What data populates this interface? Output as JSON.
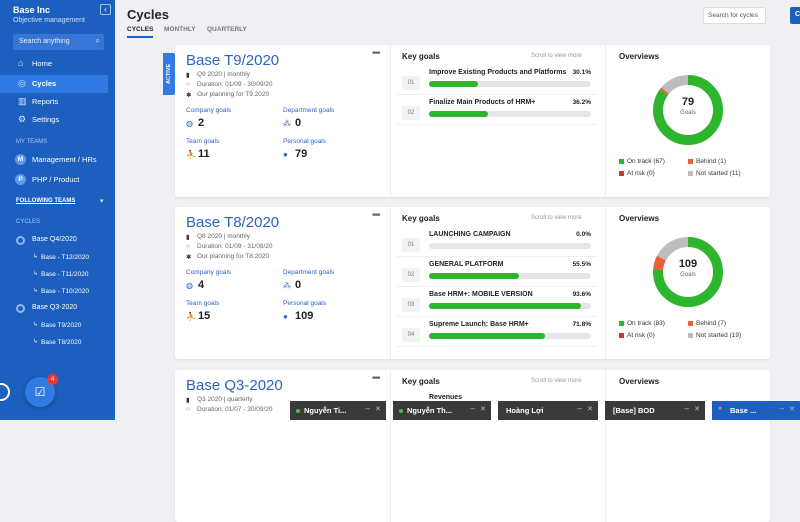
{
  "sidebar": {
    "company": "Base Inc",
    "subtitle": "Objective management",
    "search": "Search anything",
    "nav": [
      "Home",
      "Cycles",
      "Reports",
      "Settings"
    ],
    "my_teams_heading": "MY TEAMS",
    "teams": [
      {
        "initial": "M",
        "name": "Management / HRs"
      },
      {
        "initial": "P",
        "name": "PHP / Product"
      }
    ],
    "following_heading": "FOLLOWING TEAMS",
    "cycles_heading": "CYCLES",
    "cycles": [
      {
        "name": "Base Q4/2020",
        "children": [
          "Base - T12/2020",
          "Base - T11/2020",
          "Base - T10/2020"
        ]
      },
      {
        "name": "Base Q3-2020",
        "children": [
          "Base T9/2020",
          "Base T8/2020"
        ]
      }
    ],
    "badge": 4
  },
  "header": {
    "title": "Cycles",
    "tabs": [
      "CYCLES",
      "MONTHLY",
      "QUARTERLY"
    ],
    "search": "Search for cycles",
    "button": "C"
  },
  "cards": [
    {
      "status": "ACTIVE",
      "name": "Base T9/2020",
      "period": "Q9 2020 | monthly",
      "duration": "Duration: 01/09 - 30/09/20",
      "planning": "Our planning for T9.2020",
      "stats": [
        {
          "label": "Company goals",
          "value": 2
        },
        {
          "label": "Department goals",
          "value": 0
        },
        {
          "label": "Team goals",
          "value": 11
        },
        {
          "label": "Personal goals",
          "value": 79
        }
      ],
      "key_goals_title": "Key goals",
      "scroll_hint": "Scroll to view more",
      "goals": [
        {
          "index": "01",
          "name": "Improve Existing Products and Platforms",
          "value": 30.1,
          "label": "30.1%"
        },
        {
          "index": "02",
          "name": "Finalize Main Products of HRM+",
          "value": 36.2,
          "label": "36.2%"
        }
      ],
      "overview_title": "Overviews",
      "total": 79,
      "total_unit": "Goals",
      "statuses": [
        {
          "label": "On track (67)",
          "value": 67,
          "color": "#2db52d"
        },
        {
          "label": "Behind (1)",
          "value": 1,
          "color": "#e8603c"
        },
        {
          "label": "At risk (0)",
          "value": 0,
          "color": "#d8312a"
        },
        {
          "label": "Not started (11)",
          "value": 11,
          "color": "#bdbdbd"
        }
      ]
    },
    {
      "name": "Base T8/2020",
      "period": "Q8 2020 | monthly",
      "duration": "Duration: 01/09 - 31/08/20",
      "planning": "Our planning for T8.2020",
      "stats": [
        {
          "label": "Company goals",
          "value": 4
        },
        {
          "label": "Department goals",
          "value": 0
        },
        {
          "label": "Team goals",
          "value": 15
        },
        {
          "label": "Personal goals",
          "value": 109
        }
      ],
      "key_goals_title": "Key goals",
      "scroll_hint": "Scroll to view more",
      "goals": [
        {
          "index": "01",
          "name": "LAUNCHING CAMPAIGN",
          "value": 0.0,
          "label": "0.0%"
        },
        {
          "index": "02",
          "name": "GENERAL PLATFORM",
          "value": 55.5,
          "label": "55.5%"
        },
        {
          "index": "03",
          "name": "Base HRM+: MOBILE VERSION",
          "value": 93.6,
          "label": "93.6%"
        },
        {
          "index": "04",
          "name": "Supreme Launch: Base HRM+",
          "value": 71.8,
          "label": "71.8%"
        }
      ],
      "overview_title": "Overviews",
      "total": 109,
      "total_unit": "Goals",
      "statuses": [
        {
          "label": "On track (83)",
          "value": 83,
          "color": "#2db52d"
        },
        {
          "label": "Behind (7)",
          "value": 7,
          "color": "#e8603c"
        },
        {
          "label": "At risk (0)",
          "value": 0,
          "color": "#d8312a"
        },
        {
          "label": "Not started (19)",
          "value": 19,
          "color": "#bdbdbd"
        }
      ]
    },
    {
      "name": "Base Q3-2020",
      "period": "Q3 2020 | quarterly",
      "duration": "Duration: 01/07 - 30/09/20",
      "key_goals_title": "Key goals",
      "scroll_hint": "Scroll to view more",
      "goals": [
        {
          "name": "Revenues"
        }
      ],
      "overview_title": "Overviews"
    }
  ],
  "chat_bar": [
    "Nguyễn Ti...",
    "Nguyễn Th...",
    "Hoàng Lợi",
    "[Base] BOD",
    "Base ..."
  ]
}
